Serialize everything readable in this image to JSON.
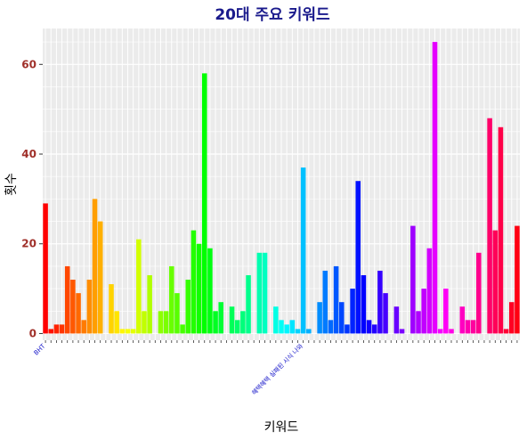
{
  "chart_data": {
    "type": "bar",
    "title": "20대 주요 키워드",
    "xlabel": "키워드",
    "ylabel": "횟수",
    "ylim": [
      -1.5,
      68
    ],
    "yticks": [
      0,
      20,
      40,
      60
    ],
    "grid": true,
    "legend": "none",
    "colors": {
      "panel_background": "#ebebeb",
      "grid_major": "#ffffff",
      "title": "#1a1a8c",
      "ytick_labels": "#a0302a",
      "xtick_labels": "#1010c8"
    },
    "x_tick_label_readable": [
      "BHT",
      "혜택혜택 실패된 시식 나와"
    ],
    "values": [
      29,
      1,
      2,
      2,
      15,
      12,
      9,
      3,
      12,
      30,
      25,
      0,
      11,
      5,
      1,
      1,
      1,
      21,
      5,
      13,
      0,
      5,
      5,
      15,
      9,
      2,
      12,
      23,
      20,
      58,
      19,
      5,
      7,
      0,
      6,
      3,
      5,
      13,
      0,
      18,
      18,
      0,
      6,
      3,
      2,
      3,
      1,
      37,
      1,
      0,
      7,
      14,
      3,
      15,
      7,
      2,
      10,
      34,
      13,
      3,
      2,
      14,
      9,
      0,
      6,
      1,
      0,
      24,
      5,
      10,
      19,
      65,
      1,
      10,
      1,
      0,
      6,
      3,
      3,
      18,
      0,
      48,
      23,
      46,
      1,
      7,
      24
    ]
  }
}
